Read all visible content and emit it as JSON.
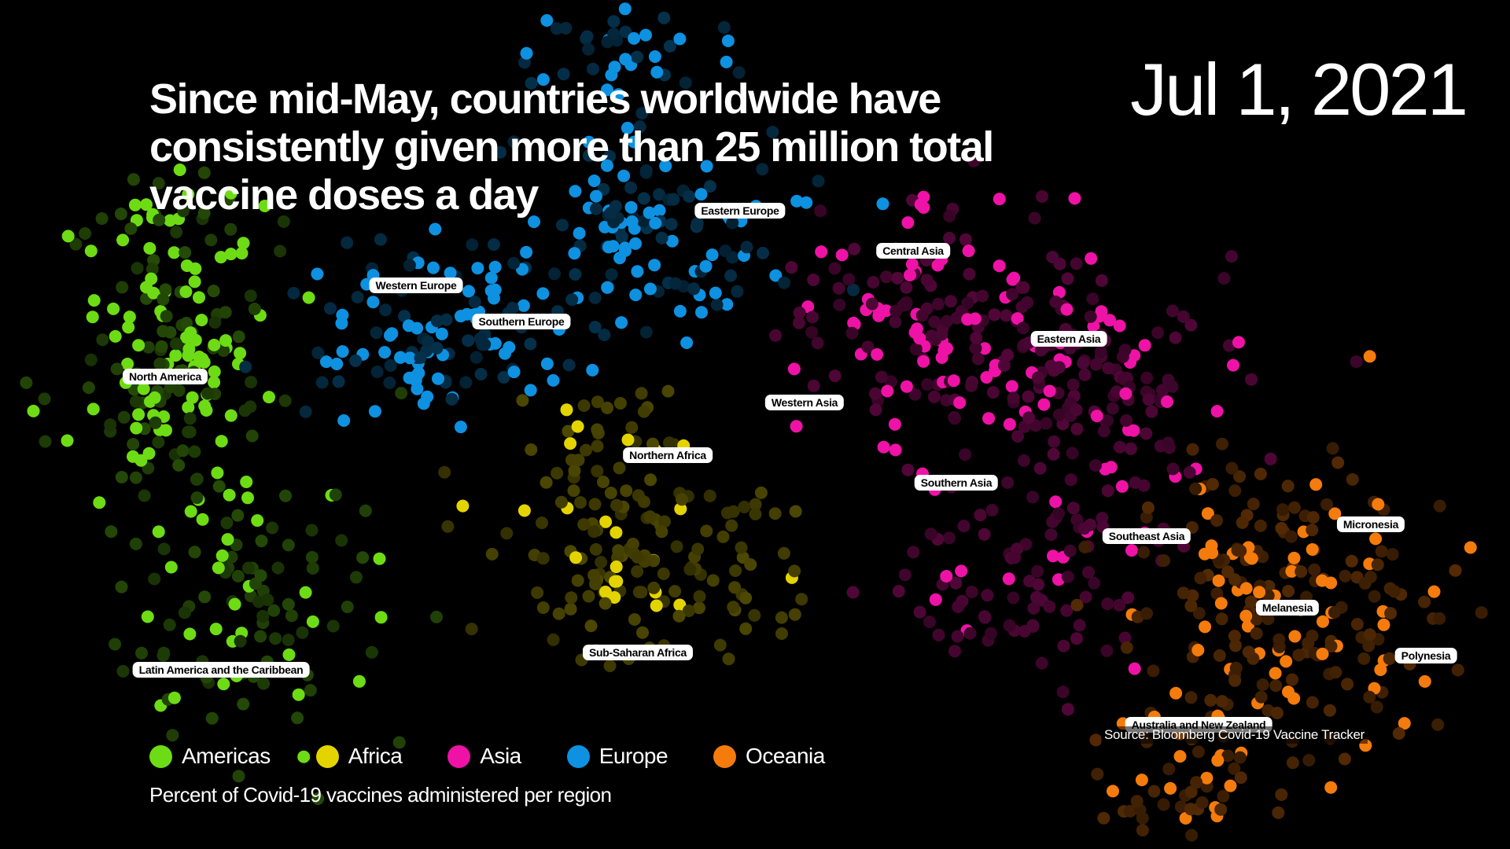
{
  "headline": "Since mid-May, countries worldwide have consistently given more than 25 million total vaccine doses a day",
  "date": "Jul 1, 2021",
  "source": "Source: Bloomberg Covid-19 Vaccine Tracker",
  "caption": "Percent of Covid-19 vaccines administered per region",
  "chart_data": {
    "type": "scatter",
    "title": "Since mid-May, countries worldwide have consistently given more than 25 million total vaccine doses a day",
    "subtitle": "Percent of Covid-19 vaccines administered per region",
    "date": "Jul 1, 2021",
    "xlabel": "",
    "ylabel": "",
    "grid": false,
    "legend_position": "bottom-left",
    "series": [
      {
        "name": "Americas",
        "color": "#6ddc14"
      },
      {
        "name": "Africa",
        "color": "#e3d400"
      },
      {
        "name": "Asia",
        "color": "#ef12a6"
      },
      {
        "name": "Europe",
        "color": "#0d91e0"
      },
      {
        "name": "Oceania",
        "color": "#f47b0c"
      }
    ],
    "subregions": [
      {
        "name": "North America",
        "region": "Americas"
      },
      {
        "name": "Latin America and the Caribbean",
        "region": "Americas"
      },
      {
        "name": "Northern Africa",
        "region": "Africa"
      },
      {
        "name": "Sub-Saharan Africa",
        "region": "Africa"
      },
      {
        "name": "Eastern Europe",
        "region": "Europe"
      },
      {
        "name": "Western Europe",
        "region": "Europe"
      },
      {
        "name": "Southern Europe",
        "region": "Europe"
      },
      {
        "name": "Central Asia",
        "region": "Asia"
      },
      {
        "name": "Eastern Asia",
        "region": "Asia"
      },
      {
        "name": "Western Asia",
        "region": "Asia"
      },
      {
        "name": "Southern Asia",
        "region": "Asia"
      },
      {
        "name": "Southeast Asia",
        "region": "Asia"
      },
      {
        "name": "Micronesia",
        "region": "Oceania"
      },
      {
        "name": "Melanesia",
        "region": "Oceania"
      },
      {
        "name": "Polynesia",
        "region": "Oceania"
      },
      {
        "name": "Australia and New Zealand",
        "region": "Oceania"
      }
    ]
  }
}
